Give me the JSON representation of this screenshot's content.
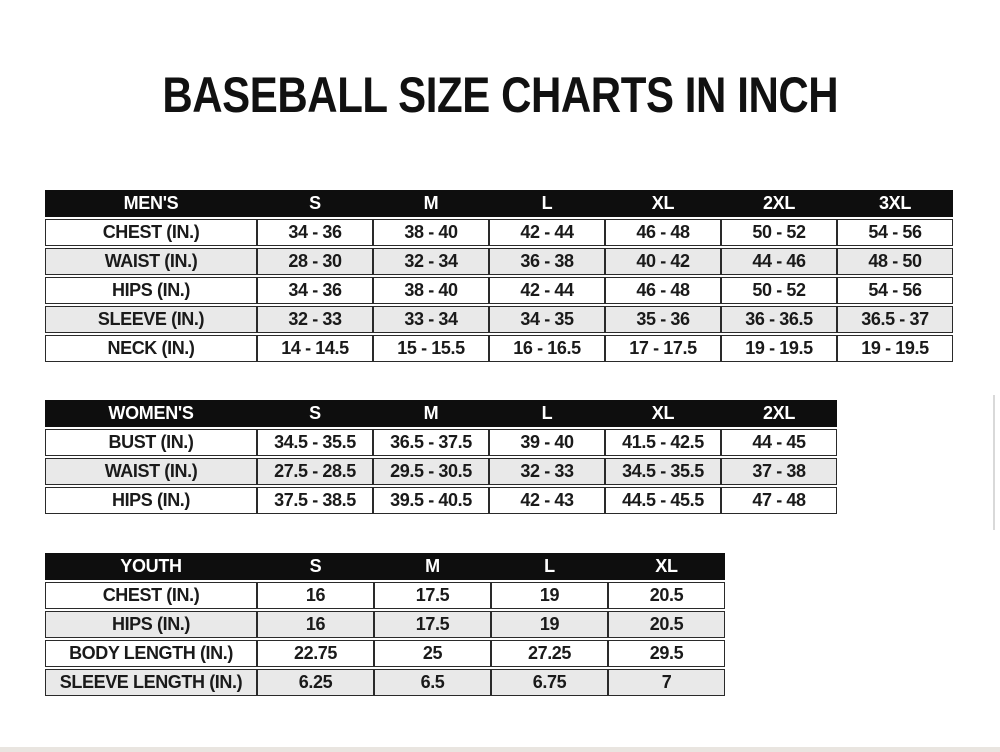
{
  "page": {
    "title": "BASEBALL SIZE CHARTS IN INCH"
  },
  "colors": {
    "header_bg": "#0e0e0e",
    "header_text": "#ffffff",
    "row_stripe": "#e9e9e9",
    "cell_text": "#1a1a1a",
    "border": "#2a2a2a"
  },
  "tables": {
    "mens": {
      "id": "mens",
      "header": [
        "MEN'S",
        "S",
        "M",
        "L",
        "XL",
        "2XL",
        "3XL"
      ],
      "rows": [
        [
          "CHEST (IN.)",
          "34 - 36",
          "38 - 40",
          "42 - 44",
          "46 - 48",
          "50 - 52",
          "54 - 56"
        ],
        [
          "WAIST (IN.)",
          "28 - 30",
          "32 - 34",
          "36 - 38",
          "40 - 42",
          "44 - 46",
          "48 - 50"
        ],
        [
          "HIPS (IN.)",
          "34 - 36",
          "38 - 40",
          "42 - 44",
          "46 - 48",
          "50 - 52",
          "54 - 56"
        ],
        [
          "SLEEVE (IN.)",
          "32 - 33",
          "33 - 34",
          "34 - 35",
          "35 - 36",
          "36 - 36.5",
          "36.5 - 37"
        ],
        [
          "NECK (IN.)",
          "14 - 14.5",
          "15 - 15.5",
          "16 - 16.5",
          "17 - 17.5",
          "19 - 19.5",
          "19 - 19.5"
        ]
      ]
    },
    "womens": {
      "id": "womens",
      "header": [
        "WOMEN'S",
        "S",
        "M",
        "L",
        "XL",
        "2XL"
      ],
      "rows": [
        [
          "BUST (IN.)",
          "34.5 - 35.5",
          "36.5 - 37.5",
          "39 - 40",
          "41.5 - 42.5",
          "44 - 45"
        ],
        [
          "WAIST (IN.)",
          "27.5 - 28.5",
          "29.5 - 30.5",
          "32 - 33",
          "34.5 - 35.5",
          "37 - 38"
        ],
        [
          "HIPS (IN.)",
          "37.5 - 38.5",
          "39.5 - 40.5",
          "42 - 43",
          "44.5 - 45.5",
          "47 - 48"
        ]
      ]
    },
    "youth": {
      "id": "youth",
      "header": [
        "YOUTH",
        "S",
        "M",
        "L",
        "XL"
      ],
      "rows": [
        [
          "CHEST (IN.)",
          "16",
          "17.5",
          "19",
          "20.5"
        ],
        [
          "HIPS (IN.)",
          "16",
          "17.5",
          "19",
          "20.5"
        ],
        [
          "BODY LENGTH (IN.)",
          "22.75",
          "25",
          "27.25",
          "29.5"
        ],
        [
          "SLEEVE LENGTH (IN.)",
          "6.25",
          "6.5",
          "6.75",
          "7"
        ]
      ]
    }
  }
}
